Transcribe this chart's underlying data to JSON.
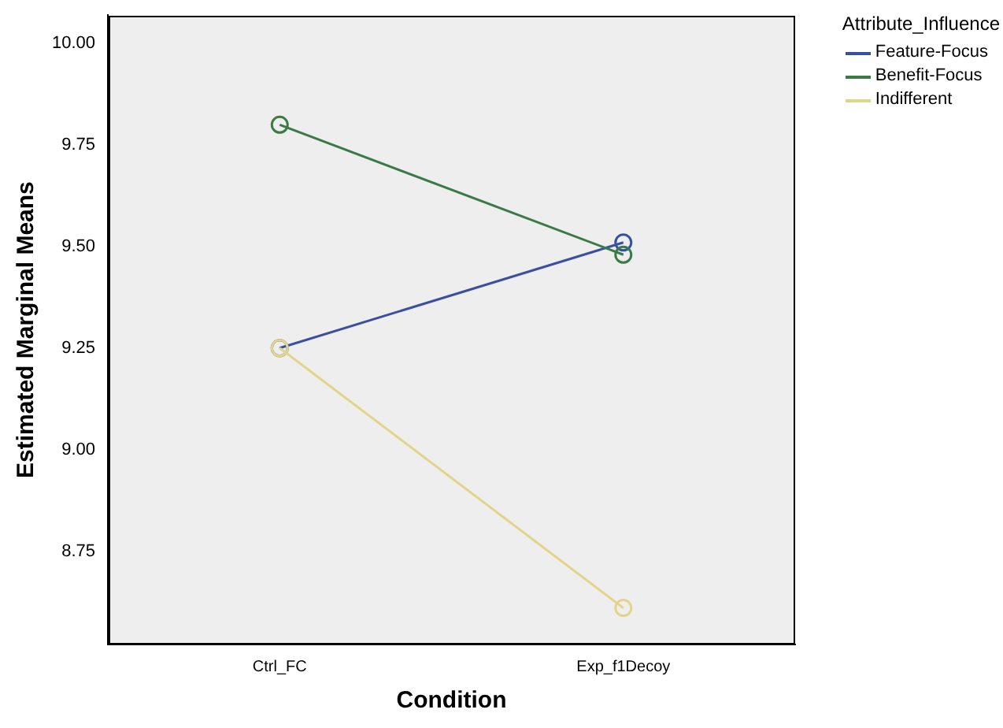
{
  "chart_data": {
    "type": "line",
    "xlabel": "Condition",
    "ylabel": "Estimated Marginal Means",
    "legend_title": "Attribute_Influence",
    "legend": "top right",
    "marker": "circle",
    "grid": false,
    "categories": [
      "Ctrl_FC",
      "Exp_f1Decoy"
    ],
    "ylim": [
      8.52,
      10.07
    ],
    "yticks": [
      {
        "value": 8.75,
        "label": "8.75"
      },
      {
        "value": 9,
        "label": "9.00"
      },
      {
        "value": 9.25,
        "label": "9.25"
      },
      {
        "value": 9.5,
        "label": "9.50"
      },
      {
        "value": 9.75,
        "label": "9.75"
      },
      {
        "value": 10,
        "label": "10.00"
      }
    ],
    "series": [
      {
        "name": "Feature-Focus",
        "color": "#3b4fa0",
        "values": [
          9.25,
          9.51
        ]
      },
      {
        "name": "Benefit-Focus",
        "color": "#3a7a44",
        "values": [
          9.8,
          9.48
        ]
      },
      {
        "name": "Indifferent",
        "color": "#e2d48a",
        "values": [
          9.25,
          8.61
        ]
      }
    ]
  }
}
